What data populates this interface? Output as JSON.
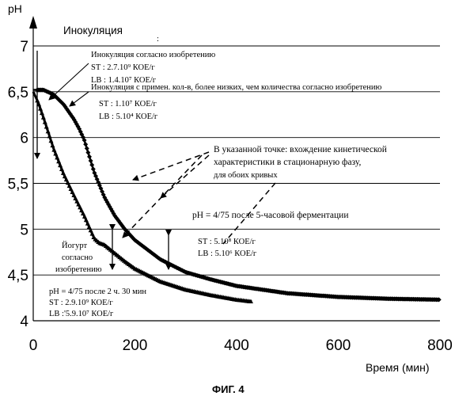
{
  "chart_data": {
    "type": "line",
    "title": "",
    "xlabel": "Время (мин)",
    "ylabel": "pH",
    "xlim": [
      0,
      800
    ],
    "ylim": [
      4,
      7
    ],
    "x_ticks": [
      "0",
      "200",
      "400",
      "600",
      "800"
    ],
    "y_ticks": [
      "4",
      "4,5",
      "5",
      "5,5",
      "6",
      "6,5",
      "7"
    ],
    "grid": "horizontal",
    "figure_caption": "ФИГ. 4",
    "series": [
      {
        "x": [
          0,
          10,
          20,
          30,
          40,
          60,
          80,
          100,
          120,
          130,
          140,
          160,
          180,
          200,
          250,
          300,
          350,
          400,
          430
        ],
        "y": [
          6.5,
          6.38,
          6.22,
          6.05,
          5.88,
          5.6,
          5.37,
          5.15,
          4.9,
          4.85,
          4.83,
          4.74,
          4.65,
          4.57,
          4.43,
          4.34,
          4.28,
          4.23,
          4.21
        ]
      },
      {
        "x": [
          0,
          20,
          40,
          60,
          80,
          90,
          100,
          120,
          140,
          160,
          180,
          200,
          250,
          300,
          350,
          400,
          500,
          600,
          700,
          800
        ],
        "y": [
          6.52,
          6.52,
          6.47,
          6.36,
          6.2,
          6.1,
          5.98,
          5.62,
          5.35,
          5.15,
          5.0,
          4.88,
          4.67,
          4.53,
          4.45,
          4.38,
          4.3,
          4.26,
          4.24,
          4.23
        ]
      }
    ],
    "annotations": {
      "inoculation": "Инокуляция",
      "colon_mark": ":",
      "inv_title": "Инокуляция согласно изобретению",
      "inv_st": "ST : 2.7.10⁹ КОЕ/г",
      "inv_lb": "LB : 1.4.10⁷ КОЕ/г",
      "low_title": "Инокуляция с примен. кол-в, более низких, чем количества  согласно изобретению",
      "low_st": "ST : 1.10⁷ КОЕ/г",
      "low_lb": "LB : 5.10⁴ КОЕ/г",
      "stationary_1": "В указанной точке: вхождение кинетической",
      "stationary_2": "характеристики  в стационарную фазу,",
      "stationary_3": "для обоих кривых",
      "ph_5h": "pH = 4/75 после 5-часовой ферментации",
      "mid_st": "ST : 5.10⁸ КОЕ/г",
      "mid_lb": "LB : 5.10⁶ КОЕ/г",
      "yog_1": "Йогурт",
      "yog_2": "согласно",
      "yog_3": "изобретению",
      "ph_2h": "pH = 4/75 после 2 ч. 30 мин",
      "end_st": "ST : 2.9.10⁹ КОЕ/г",
      "end_lb": "LB :'5.9.10⁷ КОЕ/г"
    }
  }
}
